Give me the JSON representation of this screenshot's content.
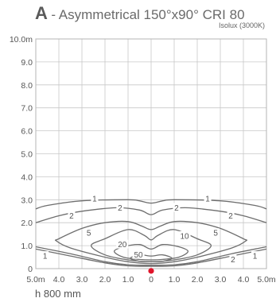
{
  "title": {
    "letter": "A",
    "text": "- Asymmetrical 150°x90° CRI 80"
  },
  "subtitle": "Isolux (3000K)",
  "footer": "h 800 mm",
  "chart_data": {
    "type": "isolux contour",
    "y_ticks": [
      "10.0m",
      "9.0",
      "8.0",
      "7.0",
      "6.0",
      "5.0",
      "4.0",
      "3.0",
      "2.0",
      "1.0",
      "0"
    ],
    "x_ticks": [
      "5.0m",
      "4.0",
      "3.0",
      "2.0",
      "1.0",
      "0",
      "1.0",
      "2.0",
      "3.0",
      "4.0",
      "5.0m"
    ],
    "ylim": [
      0,
      10
    ],
    "xlim": [
      -5,
      5
    ],
    "grid": true,
    "source_marker": {
      "x": 0,
      "y": -0.1,
      "color": "#e0142a"
    },
    "contours": [
      {
        "label": "1",
        "color": "#6e6e6e",
        "points": [
          [
            -5,
            2.6
          ],
          [
            -4.5,
            2.75
          ],
          [
            -3,
            2.95
          ],
          [
            -1,
            3.0
          ],
          [
            -0.5,
            2.95
          ],
          [
            0,
            2.85
          ],
          [
            0.5,
            2.95
          ],
          [
            1,
            3.0
          ],
          [
            3,
            2.95
          ],
          [
            4.5,
            2.75
          ],
          [
            5,
            2.6
          ]
        ]
      },
      {
        "label": "1",
        "color": "#6e6e6e",
        "points": [
          [
            -5,
            0.85
          ],
          [
            -3.5,
            0.55
          ],
          [
            -2,
            0.25
          ],
          [
            -1,
            0.12
          ],
          [
            0,
            0.1
          ],
          [
            1,
            0.12
          ],
          [
            2,
            0.25
          ],
          [
            3.5,
            0.55
          ],
          [
            5,
            0.85
          ]
        ]
      },
      {
        "label": "2",
        "color": "#6e6e6e",
        "points": [
          [
            -5,
            2.0
          ],
          [
            -4,
            2.3
          ],
          [
            -3,
            2.5
          ],
          [
            -1.5,
            2.65
          ],
          [
            -0.5,
            2.55
          ],
          [
            0,
            2.35
          ],
          [
            0.5,
            2.55
          ],
          [
            1.5,
            2.65
          ],
          [
            3,
            2.5
          ],
          [
            4,
            2.3
          ],
          [
            5,
            2.0
          ]
        ]
      },
      {
        "label": "2",
        "color": "#6e6e6e",
        "points": [
          [
            -5,
            0.95
          ],
          [
            -3.5,
            0.65
          ],
          [
            -2,
            0.3
          ],
          [
            -1,
            0.17
          ],
          [
            0,
            0.15
          ],
          [
            1,
            0.17
          ],
          [
            2,
            0.3
          ],
          [
            3.5,
            0.65
          ],
          [
            5,
            0.95
          ]
        ]
      },
      {
        "label": "5",
        "color": "#6e6e6e",
        "points": [
          [
            -4.1,
            1.2
          ],
          [
            -4,
            1.3
          ],
          [
            -3,
            1.75
          ],
          [
            -2,
            2.0
          ],
          [
            -1,
            2.05
          ],
          [
            -0.4,
            1.85
          ],
          [
            0,
            1.7
          ],
          [
            0.4,
            1.85
          ],
          [
            1,
            2.05
          ],
          [
            2,
            2.0
          ],
          [
            3,
            1.75
          ],
          [
            4,
            1.3
          ],
          [
            4.1,
            1.2
          ],
          [
            3.5,
            0.9
          ],
          [
            2,
            0.5
          ],
          [
            1,
            0.3
          ],
          [
            0,
            0.22
          ],
          [
            -1,
            0.3
          ],
          [
            -2,
            0.5
          ],
          [
            -3.5,
            0.9
          ],
          [
            -4.1,
            1.2
          ]
        ]
      },
      {
        "label": "10",
        "color": "#6e6e6e",
        "points": [
          [
            -2.6,
            1.0
          ],
          [
            -2,
            1.3
          ],
          [
            -1,
            1.7
          ],
          [
            -0.3,
            1.45
          ],
          [
            0,
            1.25
          ],
          [
            0.3,
            1.45
          ],
          [
            1,
            1.7
          ],
          [
            2,
            1.3
          ],
          [
            2.6,
            1.0
          ],
          [
            2,
            0.6
          ],
          [
            1,
            0.38
          ],
          [
            0,
            0.3
          ],
          [
            -1,
            0.38
          ],
          [
            -2,
            0.6
          ],
          [
            -2.6,
            1.0
          ]
        ]
      },
      {
        "label": "20",
        "color": "#6e6e6e",
        "points": [
          [
            -1.6,
            0.75
          ],
          [
            -1.2,
            0.95
          ],
          [
            -0.5,
            1.05
          ],
          [
            0,
            0.85
          ],
          [
            0.5,
            1.05
          ],
          [
            1.2,
            0.95
          ],
          [
            1.6,
            0.75
          ],
          [
            1.2,
            0.5
          ],
          [
            0.5,
            0.4
          ],
          [
            0,
            0.38
          ],
          [
            -0.5,
            0.4
          ],
          [
            -1.2,
            0.5
          ],
          [
            -1.6,
            0.75
          ]
        ]
      },
      {
        "label": "50",
        "color": "#6e6e6e",
        "points": [
          [
            -0.9,
            0.45
          ],
          [
            -0.5,
            0.6
          ],
          [
            0,
            0.55
          ],
          [
            0.5,
            0.6
          ],
          [
            0.9,
            0.45
          ],
          [
            0.5,
            0.32
          ],
          [
            0,
            0.3
          ],
          [
            -0.5,
            0.32
          ],
          [
            -0.9,
            0.45
          ]
        ]
      }
    ],
    "contour_labels": [
      {
        "text": "1",
        "x": -2.45,
        "y": 3.05
      },
      {
        "text": "1",
        "x": 2.45,
        "y": 3.05
      },
      {
        "text": "2",
        "x": -1.35,
        "y": 2.65
      },
      {
        "text": "2",
        "x": 1.1,
        "y": 2.65
      },
      {
        "text": "2",
        "x": -3.45,
        "y": 2.3
      },
      {
        "text": "2",
        "x": 3.45,
        "y": 2.3
      },
      {
        "text": "5",
        "x": -2.7,
        "y": 1.55
      },
      {
        "text": "5",
        "x": 2.8,
        "y": 1.55
      },
      {
        "text": "10",
        "x": 1.45,
        "y": 1.42
      },
      {
        "text": "20",
        "x": -1.25,
        "y": 1.05
      },
      {
        "text": "50",
        "x": -0.55,
        "y": 0.6
      },
      {
        "text": "1",
        "x": -4.6,
        "y": 0.55
      },
      {
        "text": "1",
        "x": 4.5,
        "y": 0.55
      },
      {
        "text": "2",
        "x": 3.55,
        "y": 0.4
      }
    ]
  }
}
